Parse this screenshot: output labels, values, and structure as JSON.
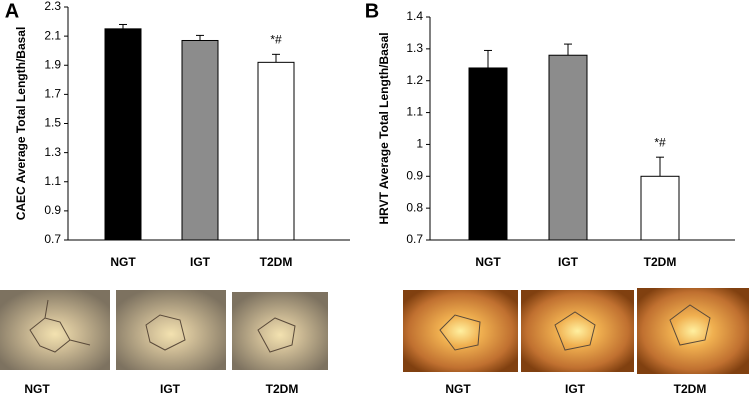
{
  "chart_data": [
    {
      "type": "bar",
      "panel": "A",
      "ylabel": "CAEC Average Total Length/Basal",
      "categories": [
        "NGT",
        "IGT",
        "T2DM"
      ],
      "values": [
        2.15,
        2.07,
        1.92
      ],
      "errors": [
        0.03,
        0.035,
        0.055
      ],
      "colors": [
        "#000000",
        "#8c8c8c",
        "#ffffff"
      ],
      "ylim": [
        0.7,
        2.3
      ],
      "yticks": [
        0.7,
        0.9,
        1.1,
        1.3,
        1.5,
        1.7,
        1.9,
        2.1,
        2.3
      ],
      "annotation": {
        "category": "T2DM",
        "text": "*#"
      },
      "image_labels": [
        "NGT",
        "IGT",
        "T2DM"
      ]
    },
    {
      "type": "bar",
      "panel": "B",
      "ylabel": "HRVT Average Total Length/Basal",
      "categories": [
        "NGT",
        "IGT",
        "T2DM"
      ],
      "values": [
        1.24,
        1.28,
        0.9
      ],
      "errors": [
        0.055,
        0.035,
        0.06
      ],
      "colors": [
        "#000000",
        "#8c8c8c",
        "#ffffff"
      ],
      "ylim": [
        0.7,
        1.4
      ],
      "yticks": [
        0.7,
        0.8,
        0.9,
        1,
        1.1,
        1.2,
        1.3,
        1.4
      ],
      "annotation": {
        "category": "T2DM",
        "text": "*#"
      },
      "image_labels": [
        "NGT",
        "IGT",
        "T2DM"
      ]
    }
  ]
}
